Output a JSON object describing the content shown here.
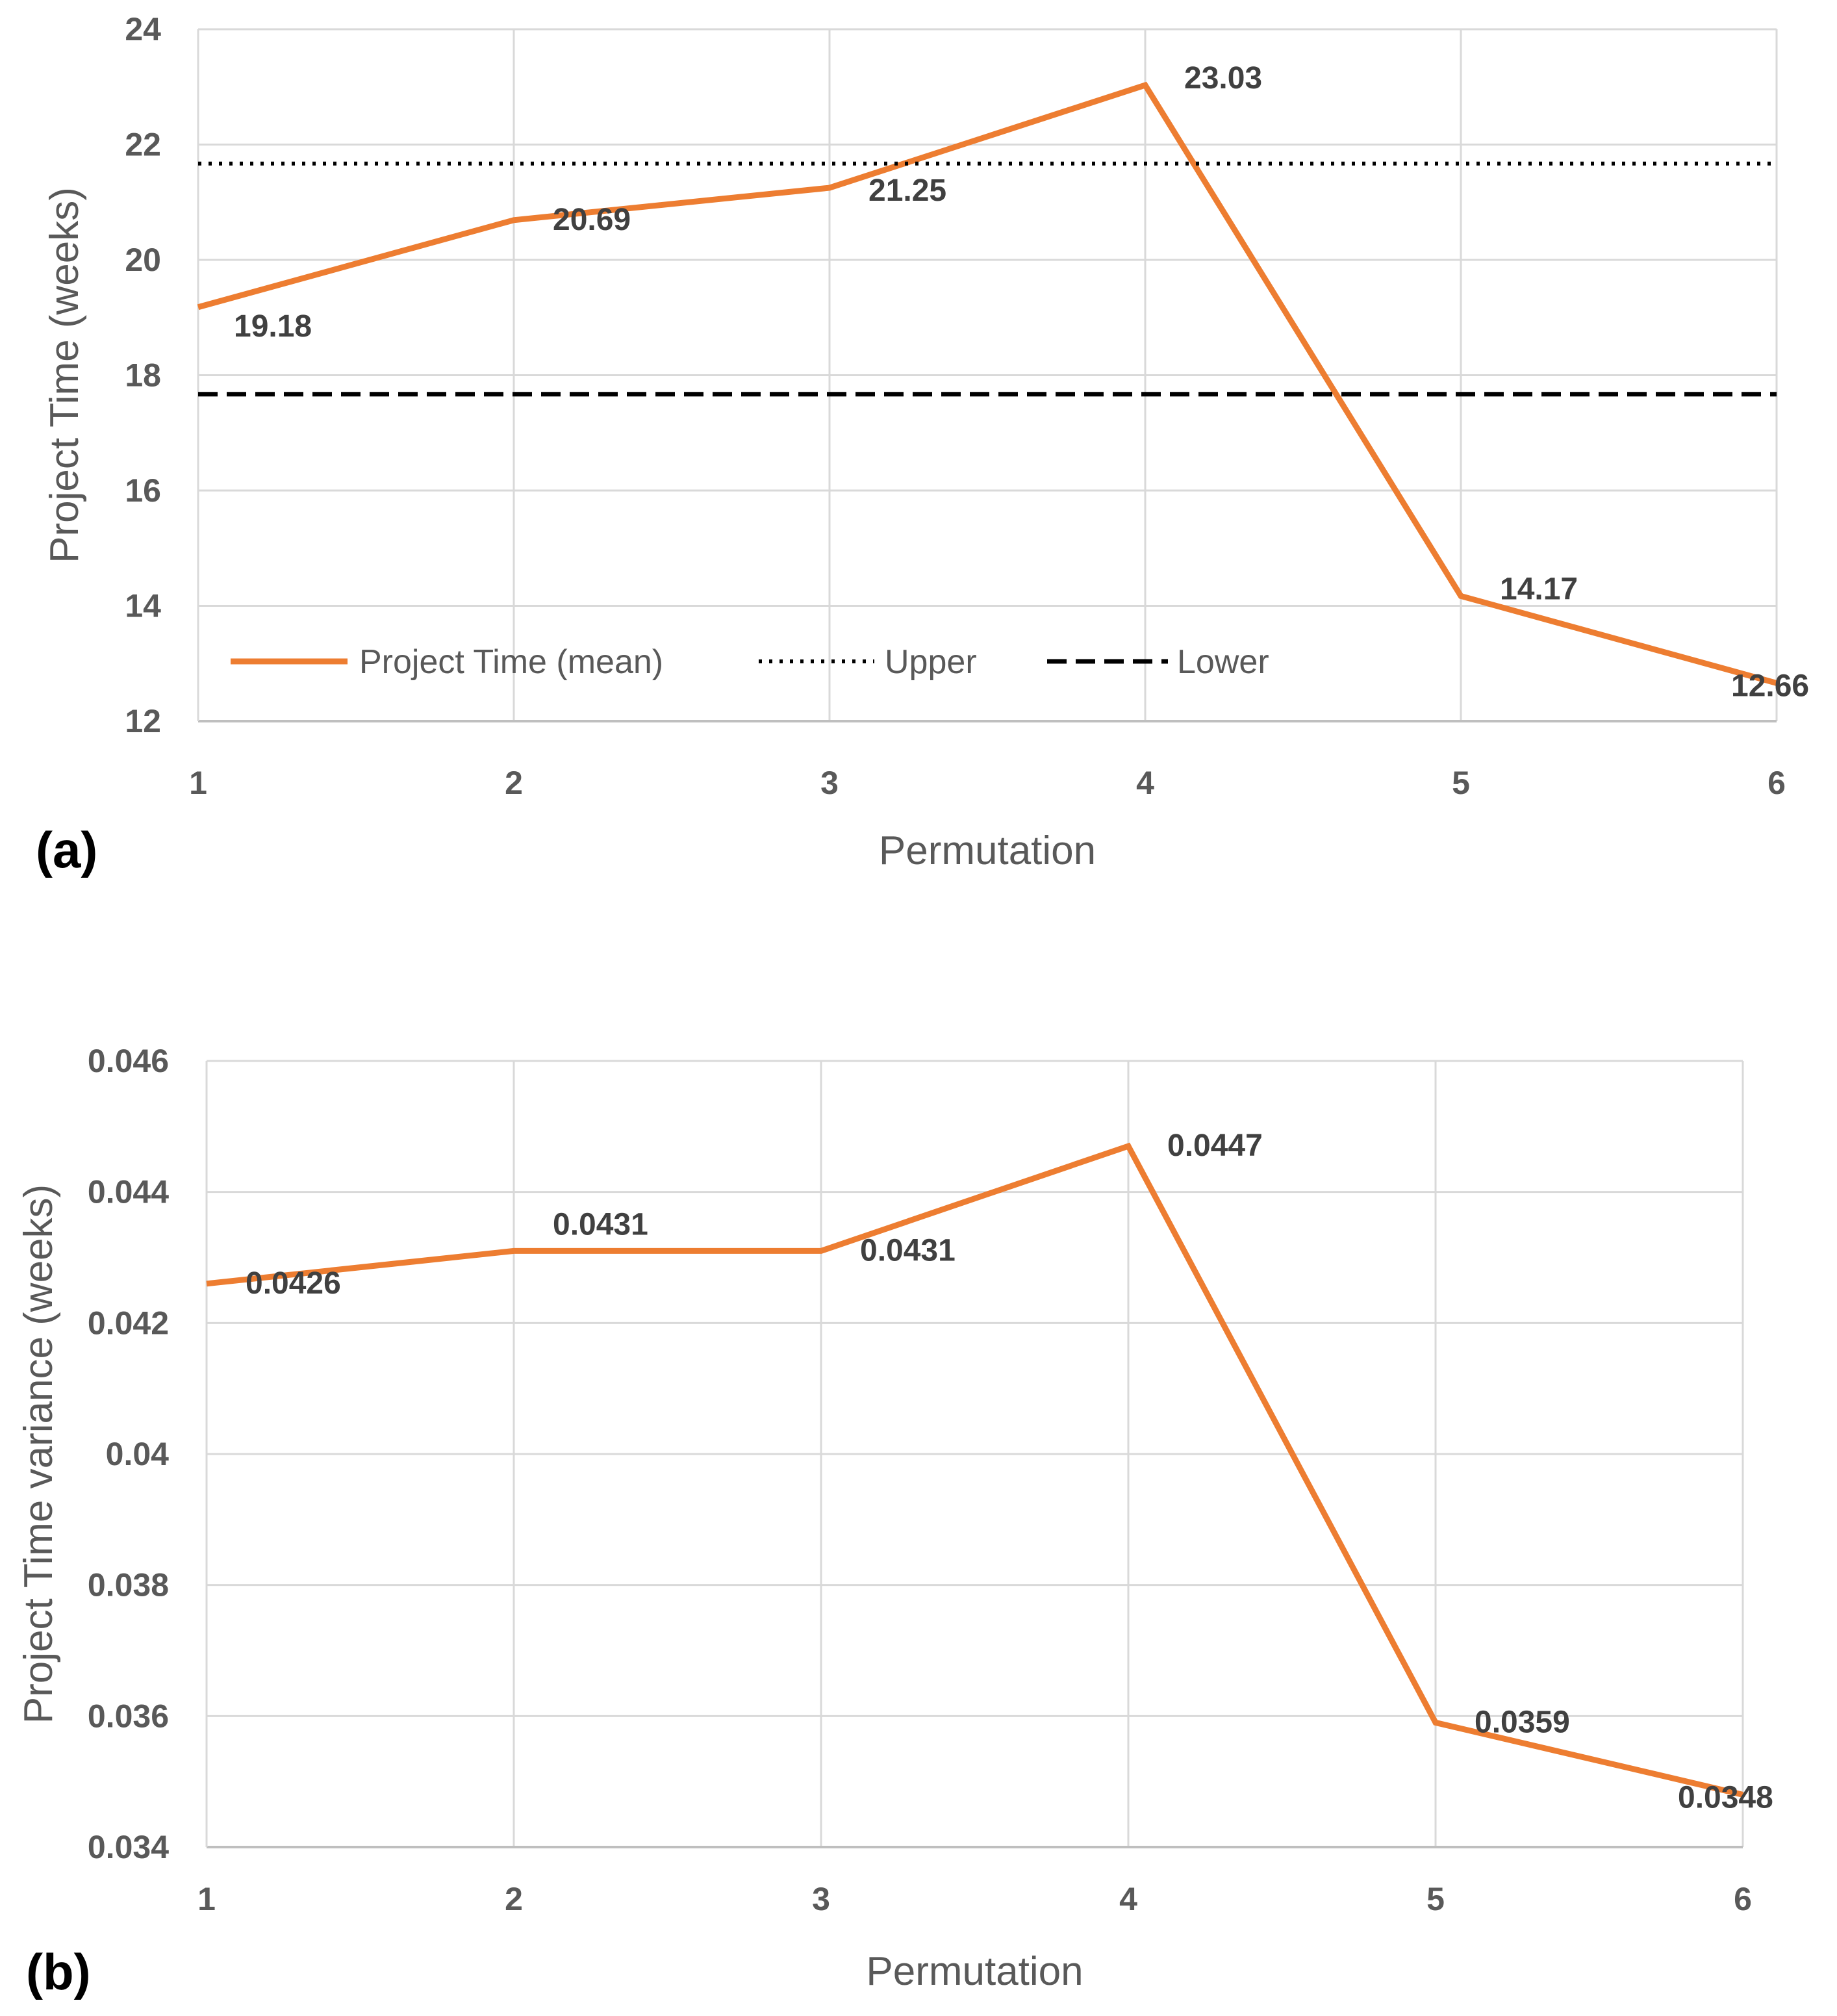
{
  "chart_data": [
    {
      "type": "line",
      "panel": "(a)",
      "title": "",
      "xlabel": "Permutation",
      "ylabel": "Project Time (weeks)",
      "x": [
        1,
        2,
        3,
        4,
        5,
        6
      ],
      "xticks": [
        "1",
        "2",
        "3",
        "4",
        "5",
        "6"
      ],
      "ylim": [
        12,
        24
      ],
      "yticks": [
        "12",
        "14",
        "16",
        "18",
        "20",
        "22",
        "24"
      ],
      "grid": true,
      "legend_position": "bottom-left",
      "series": [
        {
          "name": "Project Time (mean)",
          "style": "solid",
          "color": "#ED7D31",
          "values": [
            19.18,
            20.69,
            21.25,
            23.03,
            14.17,
            12.66
          ],
          "labels": [
            "19.18",
            "20.69",
            "21.25",
            "23.03",
            "14.17",
            "12.66"
          ]
        },
        {
          "name": "Upper",
          "style": "dotted",
          "color": "#000000",
          "constant": 21.67
        },
        {
          "name": "Lower",
          "style": "dashed",
          "color": "#000000",
          "constant": 17.67
        }
      ]
    },
    {
      "type": "line",
      "panel": "(b)",
      "title": "",
      "xlabel": "Permutation",
      "ylabel": "Project Time variance (weeks)",
      "x": [
        1,
        2,
        3,
        4,
        5,
        6
      ],
      "xticks": [
        "1",
        "2",
        "3",
        "4",
        "5",
        "6"
      ],
      "ylim": [
        0.034,
        0.046
      ],
      "yticks": [
        "0.034",
        "0.036",
        "0.038",
        "0.04",
        "0.042",
        "0.044",
        "0.046"
      ],
      "grid": true,
      "series": [
        {
          "name": "Project Time variance",
          "style": "solid",
          "color": "#ED7D31",
          "values": [
            0.0426,
            0.0431,
            0.0431,
            0.0447,
            0.0359,
            0.0348
          ],
          "labels": [
            "0.0426",
            "0.0431",
            "0.0431",
            "0.0447",
            "0.0359",
            "0.0348"
          ]
        }
      ]
    }
  ]
}
